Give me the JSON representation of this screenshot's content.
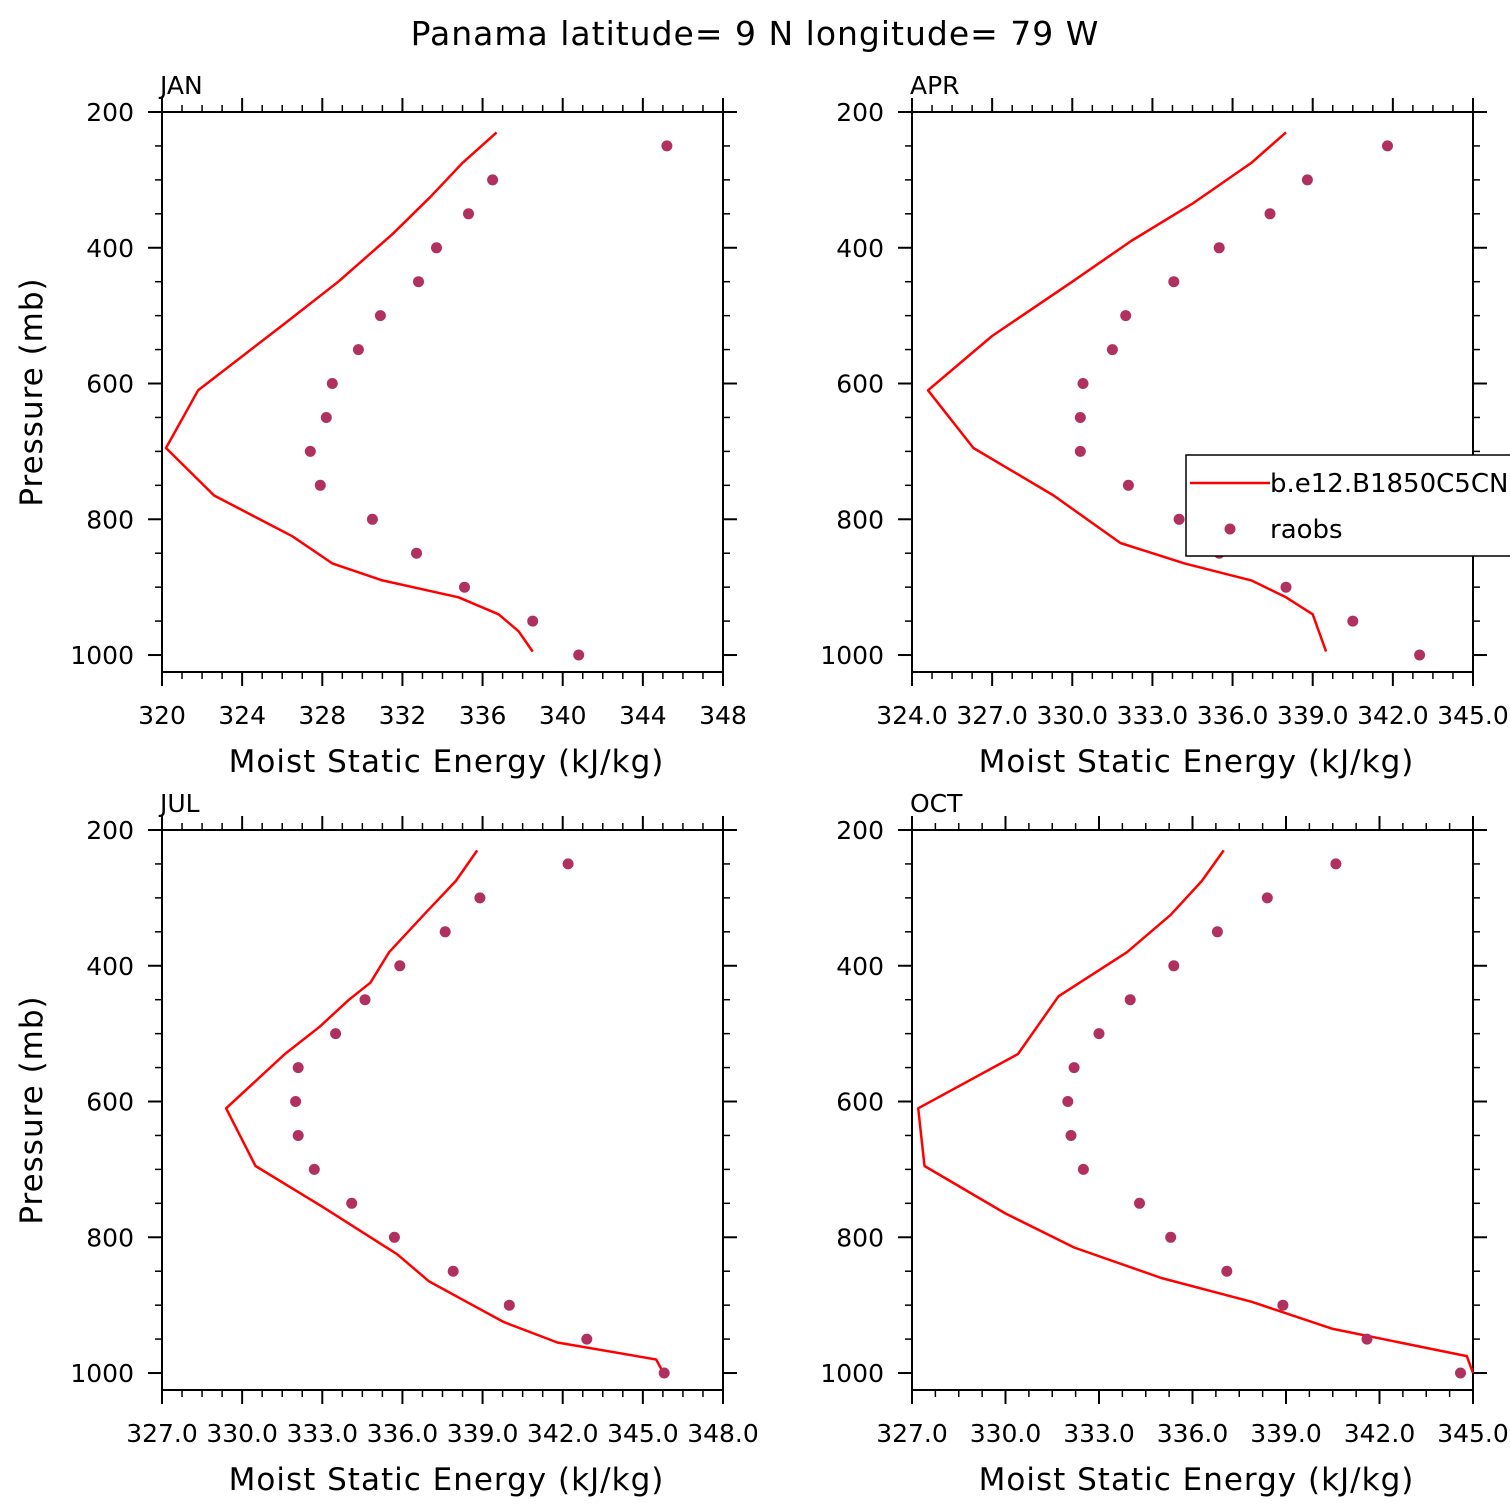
{
  "title": "Panama  latitude= 9 N longitude= 79 W",
  "colors": {
    "model": "#ff0000",
    "obs": "#b03060",
    "axis": "#000000"
  },
  "legend": {
    "model_label": "b.e12.B1850C5CN",
    "obs_label": "raobs"
  },
  "chart_data": [
    {
      "type": "line",
      "title": "JAN",
      "xlabel": "Moist Static Energy (kJ/kg)",
      "ylabel": "Pressure (mb)",
      "xlim": [
        320,
        348
      ],
      "ylim": [
        200,
        1025
      ],
      "y_inverted": true,
      "xticks": [
        "320",
        "324",
        "328",
        "332",
        "336",
        "340",
        "344",
        "348"
      ],
      "yticks": [
        "200",
        "400",
        "600",
        "800",
        "1000"
      ],
      "series": [
        {
          "name": "b.e12.B1850C5CN",
          "style": "line",
          "x": [
            336.7,
            335.0,
            333.4,
            331.5,
            328.8,
            326.2,
            321.8,
            320.2,
            322.6,
            326.5,
            328.5,
            331.0,
            334.8,
            336.8,
            337.8,
            338.5
          ],
          "y": [
            230,
            275,
            325,
            380,
            450,
            510,
            610,
            695,
            765,
            825,
            865,
            890,
            915,
            940,
            965,
            995
          ]
        },
        {
          "name": "raobs",
          "style": "points",
          "x": [
            345.2,
            336.5,
            335.3,
            333.7,
            332.8,
            330.9,
            329.8,
            328.5,
            328.2,
            327.4,
            327.9,
            330.5,
            332.7,
            335.1,
            338.5,
            340.8
          ],
          "y": [
            250,
            300,
            350,
            400,
            450,
            500,
            550,
            600,
            650,
            700,
            750,
            800,
            850,
            900,
            950,
            1000
          ]
        }
      ]
    },
    {
      "type": "line",
      "title": "APR",
      "xlabel": "Moist Static Energy (kJ/kg)",
      "ylabel": "",
      "xlim": [
        324.0,
        345.0
      ],
      "ylim": [
        200,
        1025
      ],
      "y_inverted": true,
      "xticks": [
        "324.0",
        "327.0",
        "330.0",
        "333.0",
        "336.0",
        "339.0",
        "342.0",
        "345.0"
      ],
      "yticks": [
        "200",
        "400",
        "600",
        "800",
        "1000"
      ],
      "series": [
        {
          "name": "b.e12.B1850C5CN",
          "style": "line",
          "x": [
            338.0,
            336.7,
            334.5,
            332.2,
            330.0,
            327.0,
            324.6,
            326.3,
            329.3,
            331.8,
            334.2,
            336.7,
            338.0,
            339.0,
            339.5
          ],
          "y": [
            230,
            275,
            335,
            390,
            450,
            530,
            610,
            695,
            765,
            835,
            865,
            890,
            915,
            940,
            995
          ]
        },
        {
          "name": "raobs",
          "style": "points",
          "x": [
            341.8,
            338.8,
            337.4,
            335.5,
            333.8,
            332.0,
            331.5,
            330.4,
            330.3,
            330.3,
            332.1,
            334.0,
            335.5,
            338.0,
            340.5,
            343.0
          ],
          "y": [
            250,
            300,
            350,
            400,
            450,
            500,
            550,
            600,
            650,
            700,
            750,
            800,
            850,
            900,
            950,
            1000
          ]
        }
      ]
    },
    {
      "type": "line",
      "title": "JUL",
      "xlabel": "Moist Static Energy (kJ/kg)",
      "ylabel": "Pressure (mb)",
      "xlim": [
        327.0,
        348.0
      ],
      "ylim": [
        200,
        1025
      ],
      "y_inverted": true,
      "xticks": [
        "327.0",
        "330.0",
        "333.0",
        "336.0",
        "339.0",
        "342.0",
        "345.0",
        "348.0"
      ],
      "yticks": [
        "200",
        "400",
        "600",
        "800",
        "1000"
      ],
      "series": [
        {
          "name": "b.e12.B1850C5CN",
          "style": "line",
          "x": [
            338.8,
            338.0,
            336.8,
            335.5,
            334.8,
            334.0,
            332.9,
            331.6,
            329.4,
            330.5,
            333.0,
            335.8,
            337.0,
            338.4,
            339.8,
            341.8,
            345.5,
            345.7
          ],
          "y": [
            230,
            275,
            325,
            380,
            425,
            450,
            490,
            530,
            610,
            695,
            755,
            825,
            865,
            895,
            925,
            955,
            980,
            995
          ]
        },
        {
          "name": "raobs",
          "style": "points",
          "x": [
            342.2,
            338.9,
            337.6,
            335.9,
            334.6,
            333.5,
            332.1,
            332.0,
            332.1,
            332.7,
            334.1,
            335.7,
            337.9,
            340.0,
            342.9,
            345.8
          ],
          "y": [
            250,
            300,
            350,
            400,
            450,
            500,
            550,
            600,
            650,
            700,
            750,
            800,
            850,
            900,
            950,
            1000
          ]
        }
      ]
    },
    {
      "type": "line",
      "title": "OCT",
      "xlabel": "Moist Static Energy (kJ/kg)",
      "ylabel": "",
      "xlim": [
        327.0,
        345.0
      ],
      "ylim": [
        200,
        1025
      ],
      "y_inverted": true,
      "xticks": [
        "327.0",
        "330.0",
        "333.0",
        "336.0",
        "339.0",
        "342.0",
        "345.0"
      ],
      "yticks": [
        "200",
        "400",
        "600",
        "800",
        "1000"
      ],
      "series": [
        {
          "name": "b.e12.B1850C5CN",
          "style": "line",
          "x": [
            337.0,
            336.3,
            335.3,
            333.9,
            331.7,
            330.4,
            327.2,
            327.4,
            330.0,
            332.2,
            335.0,
            337.9,
            340.5,
            344.8,
            345.0
          ],
          "y": [
            230,
            275,
            325,
            380,
            445,
            530,
            610,
            695,
            765,
            815,
            860,
            895,
            935,
            975,
            1000
          ]
        },
        {
          "name": "raobs",
          "style": "points",
          "x": [
            340.6,
            338.4,
            336.8,
            335.4,
            334.0,
            333.0,
            332.2,
            332.0,
            332.1,
            332.5,
            334.3,
            335.3,
            337.1,
            338.9,
            341.6,
            344.6
          ],
          "y": [
            250,
            300,
            350,
            400,
            450,
            500,
            550,
            600,
            650,
            700,
            750,
            800,
            850,
            900,
            950,
            1000
          ]
        }
      ]
    }
  ]
}
